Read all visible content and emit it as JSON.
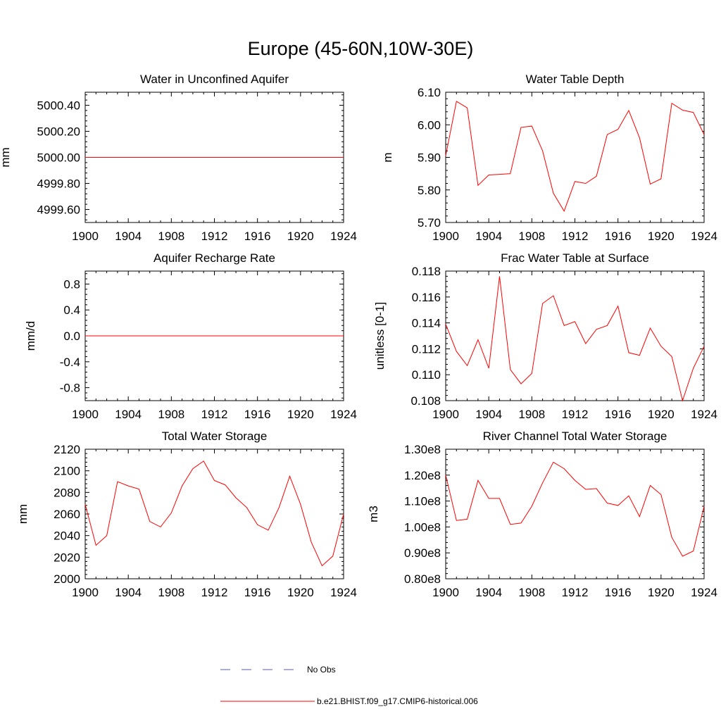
{
  "title": "Europe (45-60N,10W-30E)",
  "legend": {
    "obs_label": "No Obs",
    "model_label": "b.e21.BHIST.f09_g17.CMIP6-historical.006",
    "obs_color": "#5a5aa8",
    "model_color": "#ff0000"
  },
  "chart_data": [
    {
      "type": "line",
      "title": "Water in Unconfined Aquifer",
      "ylabel": "mm",
      "xlim": [
        1900,
        1924
      ],
      "xticks": [
        1900,
        1904,
        1908,
        1912,
        1916,
        1920,
        1924
      ],
      "xtick_labels": [
        "1900",
        "1904",
        "1908",
        "1912",
        "1916",
        "1920",
        "1924"
      ],
      "ylim": [
        4999.5,
        5000.5
      ],
      "yticks": [
        4999.6,
        4999.8,
        5000.0,
        5000.2,
        5000.4
      ],
      "ytick_labels": [
        "4999.60",
        "4999.80",
        "5000.00",
        "5000.20",
        "5000.40"
      ],
      "series": [
        {
          "x": [
            1900,
            1901,
            1902,
            1903,
            1904,
            1905,
            1906,
            1907,
            1908,
            1909,
            1910,
            1911,
            1912,
            1913,
            1914,
            1915,
            1916,
            1917,
            1918,
            1919,
            1920,
            1921,
            1922,
            1923,
            1924
          ],
          "values": [
            5000,
            5000,
            5000,
            5000,
            5000,
            5000,
            5000,
            5000,
            5000,
            5000,
            5000,
            5000,
            5000,
            5000,
            5000,
            5000,
            5000,
            5000,
            5000,
            5000,
            5000,
            5000,
            5000,
            5000,
            5000
          ]
        }
      ]
    },
    {
      "type": "line",
      "title": "Water Table Depth",
      "ylabel": "m",
      "xlim": [
        1900,
        1924
      ],
      "xticks": [
        1900,
        1904,
        1908,
        1912,
        1916,
        1920,
        1924
      ],
      "xtick_labels": [
        "1900",
        "1904",
        "1908",
        "1912",
        "1916",
        "1920",
        "1924"
      ],
      "ylim": [
        5.7,
        6.1
      ],
      "yticks": [
        5.7,
        5.8,
        5.9,
        6.0,
        6.1
      ],
      "ytick_labels": [
        "5.70",
        "5.80",
        "5.90",
        "6.00",
        "6.10"
      ],
      "series": [
        {
          "x": [
            1900,
            1901,
            1902,
            1903,
            1904,
            1905,
            1906,
            1907,
            1908,
            1909,
            1910,
            1911,
            1912,
            1913,
            1914,
            1915,
            1916,
            1917,
            1918,
            1919,
            1920,
            1921,
            1922,
            1923,
            1924
          ],
          "values": [
            5.905,
            6.072,
            6.052,
            5.814,
            5.846,
            5.848,
            5.85,
            5.992,
            5.996,
            5.92,
            5.79,
            5.735,
            5.826,
            5.82,
            5.842,
            5.97,
            5.986,
            6.044,
            5.96,
            5.818,
            5.834,
            6.066,
            6.045,
            6.038,
            5.97
          ]
        }
      ]
    },
    {
      "type": "line",
      "title": "Aquifer Recharge Rate",
      "ylabel": "mm/d",
      "xlim": [
        1900,
        1924
      ],
      "xticks": [
        1900,
        1904,
        1908,
        1912,
        1916,
        1920,
        1924
      ],
      "xtick_labels": [
        "1900",
        "1904",
        "1908",
        "1912",
        "1916",
        "1920",
        "1924"
      ],
      "ylim": [
        -1.0,
        1.0
      ],
      "yticks": [
        -0.8,
        -0.4,
        0.0,
        0.4,
        0.8
      ],
      "ytick_labels": [
        "-0.8",
        "-0.4",
        "0.0",
        "0.4",
        "0.8"
      ],
      "series": [
        {
          "x": [
            1900,
            1901,
            1902,
            1903,
            1904,
            1905,
            1906,
            1907,
            1908,
            1909,
            1910,
            1911,
            1912,
            1913,
            1914,
            1915,
            1916,
            1917,
            1918,
            1919,
            1920,
            1921,
            1922,
            1923,
            1924
          ],
          "values": [
            0,
            0,
            0,
            0,
            0,
            0,
            0,
            0,
            0,
            0,
            0,
            0,
            0,
            0,
            0,
            0,
            0,
            0,
            0,
            0,
            0,
            0,
            0,
            0,
            0
          ]
        }
      ]
    },
    {
      "type": "line",
      "title": "Frac Water Table at Surface",
      "ylabel": "unitless [0-1]",
      "xlim": [
        1900,
        1924
      ],
      "xticks": [
        1900,
        1904,
        1908,
        1912,
        1916,
        1920,
        1924
      ],
      "xtick_labels": [
        "1900",
        "1904",
        "1908",
        "1912",
        "1916",
        "1920",
        "1924"
      ],
      "ylim": [
        0.108,
        0.118
      ],
      "yticks": [
        0.108,
        0.11,
        0.112,
        0.114,
        0.116,
        0.118
      ],
      "ytick_labels": [
        "0.108",
        "0.110",
        "0.112",
        "0.114",
        "0.116",
        "0.118"
      ],
      "series": [
        {
          "x": [
            1900,
            1901,
            1902,
            1903,
            1904,
            1905,
            1906,
            1907,
            1908,
            1909,
            1910,
            1911,
            1912,
            1913,
            1914,
            1915,
            1916,
            1917,
            1918,
            1919,
            1920,
            1921,
            1922,
            1923,
            1924
          ],
          "values": [
            0.1139,
            0.1118,
            0.1107,
            0.1127,
            0.1105,
            0.1176,
            0.1104,
            0.1093,
            0.1101,
            0.1155,
            0.1161,
            0.1138,
            0.1141,
            0.1124,
            0.1135,
            0.1138,
            0.1153,
            0.1117,
            0.1115,
            0.1136,
            0.1122,
            0.1114,
            0.108,
            0.1105,
            0.1122
          ]
        }
      ]
    },
    {
      "type": "line",
      "title": "Total Water Storage",
      "ylabel": "mm",
      "xlim": [
        1900,
        1924
      ],
      "xticks": [
        1900,
        1904,
        1908,
        1912,
        1916,
        1920,
        1924
      ],
      "xtick_labels": [
        "1900",
        "1904",
        "1908",
        "1912",
        "1916",
        "1920",
        "1924"
      ],
      "ylim": [
        2000,
        2120
      ],
      "yticks": [
        2000,
        2020,
        2040,
        2060,
        2080,
        2100,
        2120
      ],
      "ytick_labels": [
        "2000",
        "2020",
        "2040",
        "2060",
        "2080",
        "2100",
        "2120"
      ],
      "series": [
        {
          "x": [
            1900,
            1901,
            1902,
            1903,
            1904,
            1905,
            1906,
            1907,
            1908,
            1909,
            1910,
            1911,
            1912,
            1913,
            1914,
            1915,
            1916,
            1917,
            1918,
            1919,
            1920,
            1921,
            1922,
            1923,
            1924
          ],
          "values": [
            2069,
            2031,
            2040,
            2090,
            2086,
            2083,
            2053,
            2048,
            2061,
            2086,
            2102,
            2109,
            2091,
            2087,
            2075,
            2066,
            2050,
            2045,
            2066,
            2095,
            2069,
            2034,
            2012,
            2021,
            2060
          ]
        }
      ]
    },
    {
      "type": "line",
      "title": "River Channel Total Water Storage",
      "ylabel": "m3",
      "xlim": [
        1900,
        1924
      ],
      "xticks": [
        1900,
        1904,
        1908,
        1912,
        1916,
        1920,
        1924
      ],
      "xtick_labels": [
        "1900",
        "1904",
        "1908",
        "1912",
        "1916",
        "1920",
        "1924"
      ],
      "ylim": [
        0.8,
        1.3
      ],
      "yticks": [
        0.8,
        0.9,
        1.0,
        1.1,
        1.2,
        1.3
      ],
      "ytick_labels": [
        "0.80e8",
        "0.90e8",
        "1.00e8",
        "1.10e8",
        "1.20e8",
        "1.30e8"
      ],
      "y_unit_multiplier": 100000000,
      "series": [
        {
          "x": [
            1900,
            1901,
            1902,
            1903,
            1904,
            1905,
            1906,
            1907,
            1908,
            1909,
            1910,
            1911,
            1912,
            1913,
            1914,
            1915,
            1916,
            1917,
            1918,
            1919,
            1920,
            1921,
            1922,
            1923,
            1924
          ],
          "values": [
            1.2,
            1.025,
            1.03,
            1.18,
            1.11,
            1.11,
            1.01,
            1.015,
            1.08,
            1.17,
            1.25,
            1.225,
            1.18,
            1.145,
            1.148,
            1.092,
            1.083,
            1.12,
            1.04,
            1.16,
            1.125,
            0.96,
            0.887,
            0.907,
            1.08
          ]
        }
      ]
    }
  ]
}
